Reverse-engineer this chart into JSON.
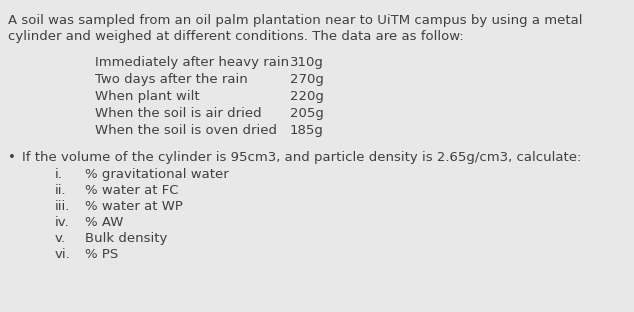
{
  "bg_color": "#e8e8e8",
  "text_color": "#404040",
  "title_lines": [
    "A soil was sampled from an oil palm plantation near to UiTM campus by using a metal",
    "cylinder and weighed at different conditions. The data are as follow:"
  ],
  "table_rows": [
    [
      "Immediately after heavy rain",
      "310g"
    ],
    [
      "Two days after the rain",
      "270g"
    ],
    [
      "When plant wilt",
      "220g"
    ],
    [
      "When the soil is air dried",
      "205g"
    ],
    [
      "When the soil is oven dried",
      "185g"
    ]
  ],
  "bullet_line": "If the volume of the cylinder is 95cm3, and particle density is 2.65g/cm3, calculate:",
  "sub_items": [
    [
      "i.",
      "% gravitational water"
    ],
    [
      "ii.",
      "% water at FC"
    ],
    [
      "iii.",
      "% water at WP"
    ],
    [
      "iv.",
      "% AW"
    ],
    [
      "v.",
      "Bulk density"
    ],
    [
      "vi.",
      "% PS"
    ]
  ],
  "title_fontsize": 9.5,
  "table_fontsize": 9.5,
  "bullet_fontsize": 9.5,
  "sub_fontsize": 9.5
}
